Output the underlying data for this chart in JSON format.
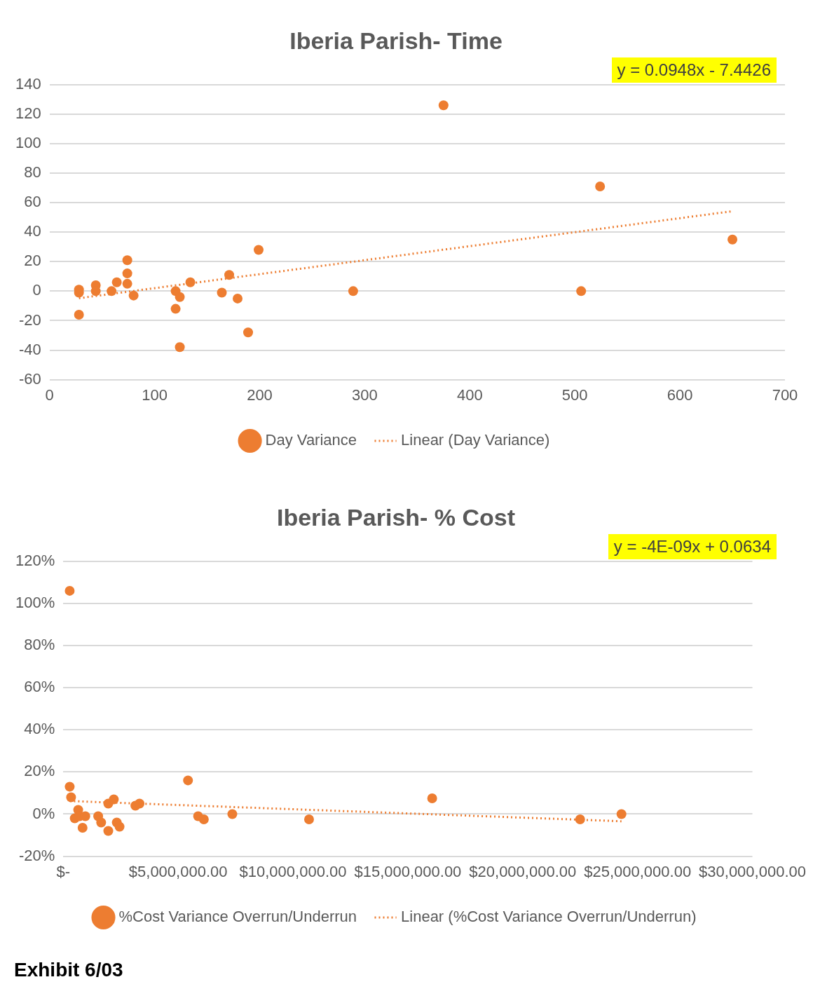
{
  "chart_data": [
    {
      "type": "scatter",
      "title": "Iberia Parish- Time",
      "annotations": [
        "y = 0.0948x - 7.4426"
      ],
      "xlim": [
        0,
        700
      ],
      "xticks": [
        0,
        100,
        200,
        300,
        400,
        500,
        600,
        700
      ],
      "ylim": [
        -60,
        140
      ],
      "yticks": [
        -60,
        -40,
        -20,
        0,
        20,
        40,
        60,
        80,
        100,
        120,
        140
      ],
      "grid": "y",
      "legend": "bottom",
      "series": [
        {
          "name": "Day Variance",
          "type": "scatter",
          "color": "#ed7d31",
          "marker": "circle",
          "x": [
            28,
            28,
            28,
            44,
            44,
            59,
            64,
            74,
            74,
            74,
            80,
            120,
            120,
            124,
            124,
            134,
            164,
            171,
            179,
            189,
            199,
            289,
            375,
            506,
            524,
            650
          ],
          "values": [
            1,
            -1,
            -16,
            4,
            0,
            0,
            6,
            21,
            12,
            5,
            -3,
            0,
            -12,
            -4,
            -38,
            6,
            -1,
            11,
            -5,
            -28,
            28,
            0,
            126,
            0,
            71,
            35
          ]
        },
        {
          "name": "Linear (Day Variance)",
          "type": "line",
          "color": "#ed7d31",
          "marker": "none",
          "line_style": "dotted",
          "x": [
            28,
            650
          ],
          "values": [
            -4.8,
            54.2
          ]
        }
      ]
    },
    {
      "type": "scatter",
      "title": "Iberia Parish- % Cost",
      "annotations": [
        "y = -4E-09x + 0.0634",
        "Exhibit 6/03"
      ],
      "xlim": [
        0,
        30000000
      ],
      "xticks": [
        {
          "value": 0,
          "label": "$-"
        },
        {
          "value": 5000000,
          "label": "$5,000,000.00"
        },
        {
          "value": 10000000,
          "label": "$10,000,000.00"
        },
        {
          "value": 15000000,
          "label": "$15,000,000.00"
        },
        {
          "value": 20000000,
          "label": "$20,000,000.00"
        },
        {
          "value": 25000000,
          "label": "$25,000,000.00"
        },
        {
          "value": 30000000,
          "label": "$30,000,000.00"
        }
      ],
      "ylim": [
        -20,
        120
      ],
      "yticks": [
        {
          "value": -20,
          "label": "-20%"
        },
        {
          "value": 0,
          "label": "0%"
        },
        {
          "value": 20,
          "label": "20%"
        },
        {
          "value": 40,
          "label": "40%"
        },
        {
          "value": 60,
          "label": "60%"
        },
        {
          "value": 80,
          "label": "80%"
        },
        {
          "value": 100,
          "label": "100%"
        },
        {
          "value": 120,
          "label": "120%"
        }
      ],
      "grid": "y",
      "legend": "bottom",
      "series": [
        {
          "name": "%Cost Variance Overrun/Underrun",
          "type": "scatter",
          "color": "#ed7d31",
          "marker": "circle",
          "x": [
            280000,
            280000,
            340000,
            500000,
            650000,
            710000,
            840000,
            960000,
            1520000,
            1650000,
            1960000,
            1960000,
            2200000,
            2330000,
            2450000,
            3140000,
            3320000,
            5430000,
            5870000,
            6120000,
            7360000,
            10700000,
            16060000,
            22500000,
            24300000
          ],
          "values": [
            106,
            13,
            8,
            -2,
            2,
            -1,
            -6.5,
            -1,
            -1,
            -4,
            5,
            -8,
            7,
            -4,
            -6,
            4,
            5,
            16,
            -1,
            -2.5,
            0,
            -2.5,
            7.5,
            -2.5,
            0
          ]
        },
        {
          "name": "Linear (%Cost Variance Overrun/Underrun)",
          "type": "line",
          "color": "#ed7d31",
          "marker": "none",
          "line_style": "dotted",
          "x": [
            280000,
            24300000
          ],
          "values": [
            6.2,
            -3.4
          ]
        }
      ]
    }
  ]
}
